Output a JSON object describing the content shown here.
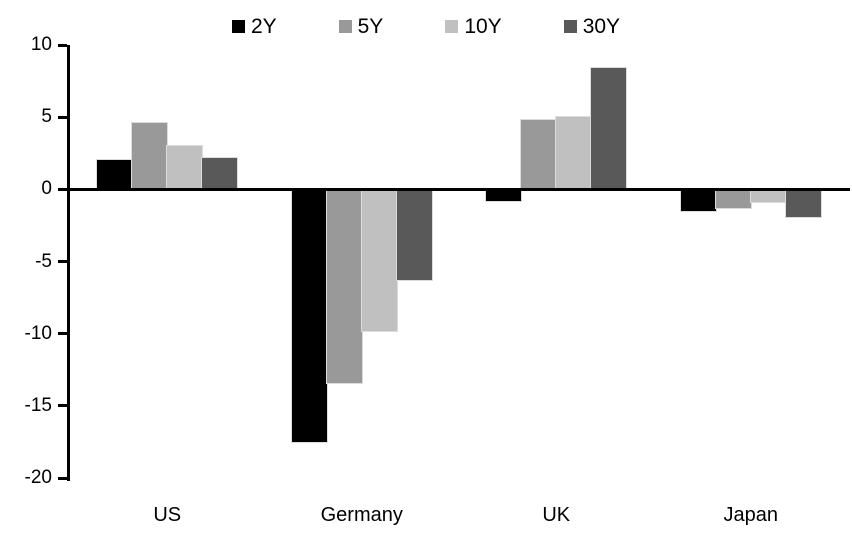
{
  "chart_data": {
    "type": "bar",
    "title": "",
    "xlabel": "",
    "ylabel": "",
    "categories": [
      "US",
      "Germany",
      "UK",
      "Japan"
    ],
    "series": [
      {
        "name": "2Y",
        "color": "#000000",
        "values": [
          2.0,
          -17.5,
          -0.8,
          -1.5
        ]
      },
      {
        "name": "5Y",
        "color": "#999999",
        "values": [
          4.6,
          -13.4,
          4.8,
          -1.3
        ]
      },
      {
        "name": "10Y",
        "color": "#c0c0c0",
        "values": [
          3.0,
          -9.8,
          5.0,
          -0.9
        ]
      },
      {
        "name": "30Y",
        "color": "#595959",
        "values": [
          2.2,
          -6.3,
          8.4,
          -1.9
        ]
      }
    ],
    "ylim": [
      -20,
      10
    ],
    "yticks": [
      10,
      5,
      0,
      -5,
      -10,
      -15,
      -20
    ],
    "grid": false,
    "legend_position": "top",
    "axis_color": "#000000",
    "background_color": "#ffffff"
  }
}
